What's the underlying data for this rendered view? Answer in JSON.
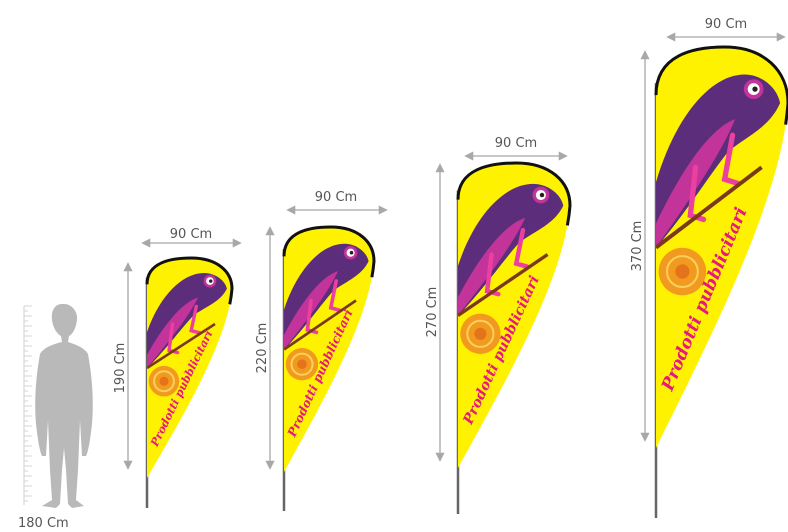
{
  "colors": {
    "flag_fill": "#fff200",
    "flag_edge": "#111111",
    "pole": "#666666",
    "text_magenta": "#e6187d",
    "arrow": "#a8a8a8",
    "person": "#b9b9b9",
    "label": "#555555",
    "chameleon_dark": "#5b2d7a",
    "chameleon_light": "#c2349a",
    "chameleon_pink": "#ec3f9f",
    "orange": "#f29a1f"
  },
  "person": {
    "label": "180 Cm"
  },
  "flags": [
    {
      "id": "flag-190",
      "width_label": "90 Cm",
      "height_label": "190 Cm",
      "print_text": "Prodotti pubblicitari"
    },
    {
      "id": "flag-220",
      "width_label": "90 Cm",
      "height_label": "220 Cm",
      "print_text": "Prodotti pubblicitari"
    },
    {
      "id": "flag-270",
      "width_label": "90 Cm",
      "height_label": "270 Cm",
      "print_text": "Prodotti pubblicitari"
    },
    {
      "id": "flag-370",
      "width_label": "90 Cm",
      "height_label": "370 Cm",
      "print_text": "Prodotti pubblicitari"
    }
  ],
  "icons": {
    "person": "person-silhouette-icon",
    "chameleon": "chameleon-icon",
    "ruler": "ruler-icon"
  }
}
